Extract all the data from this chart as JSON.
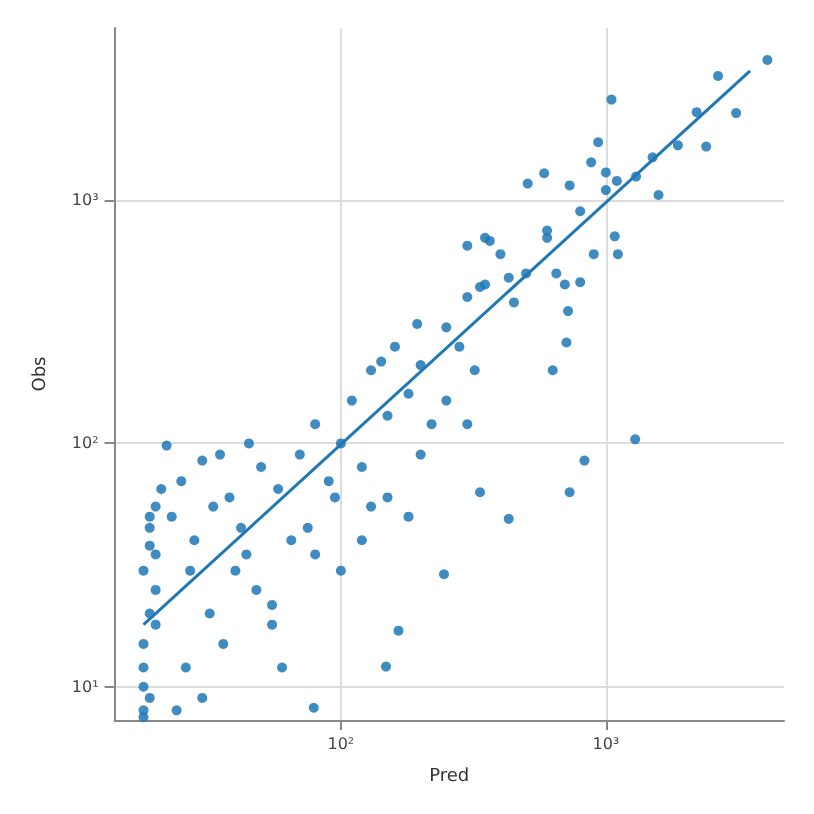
{
  "chart_data": {
    "type": "scatter",
    "xlabel": "Pred",
    "ylabel": "Obs",
    "log": "xy",
    "grid": true,
    "xlim": [
      14,
      4700
    ],
    "ylim": [
      7.3,
      5100
    ],
    "xticks": [
      {
        "value": 100,
        "label": "10²"
      },
      {
        "value": 1000,
        "label": "10³"
      }
    ],
    "yticks": [
      {
        "value": 10,
        "label": "10¹"
      },
      {
        "value": 100,
        "label": "10²"
      },
      {
        "value": 1000,
        "label": "10³"
      }
    ],
    "series": [
      {
        "marker": "circle",
        "color": "#1f77b4",
        "x": [
          18,
          18,
          19,
          18,
          19,
          20,
          18,
          19,
          20,
          19,
          18,
          20,
          19,
          18,
          20,
          22,
          25,
          30,
          35,
          28,
          32,
          26,
          24,
          38,
          40,
          36,
          30,
          45,
          50,
          42,
          48,
          55,
          60,
          65,
          79,
          148,
          55,
          70,
          80,
          90,
          100,
          110,
          120,
          130,
          150,
          160,
          180,
          200,
          220,
          250,
          280,
          300,
          320,
          120,
          150,
          200,
          250,
          180,
          100,
          80,
          130,
          300,
          350,
          400,
          450,
          500,
          600,
          700,
          800,
          900,
          1000,
          1100,
          350,
          300,
          507,
          585,
          730,
          935,
          1050,
          880,
          1000,
          1580,
          2650,
          3100,
          4070,
          1870,
          2390,
          1080,
          1110,
          800,
          720,
          710,
          630,
          830,
          730,
          1290,
          142,
          194,
          365,
          335,
          430,
          245,
          335,
          430,
          165,
          23,
          27,
          33,
          21,
          44,
          58,
          75,
          95,
          2200,
          1500,
          1300,
          600,
          650
        ],
        "values": [
          8,
          12,
          20,
          30,
          45,
          55,
          15,
          9,
          25,
          38,
          10,
          18,
          50,
          7.5,
          35,
          98,
          70,
          85,
          90,
          40,
          20,
          12,
          8,
          60,
          30,
          15,
          9,
          100,
          80,
          45,
          25,
          18,
          12,
          40,
          8.2,
          12.1,
          21.7,
          90,
          120,
          70,
          100,
          150,
          80,
          200,
          130,
          250,
          160,
          210,
          120,
          300,
          250,
          400,
          200,
          40,
          60,
          90,
          150,
          50,
          30,
          35,
          55,
          120,
          450,
          600,
          380,
          500,
          700,
          450,
          900,
          600,
          1100,
          1200,
          700,
          650,
          1170,
          1290,
          1150,
          1730,
          2590,
          1430,
          1300,
          1050,
          3240,
          2280,
          3770,
          1680,
          1660,
          710,
          600,
          460,
          350,
          260,
          200,
          85,
          63,
          104,
          217,
          310,
          680,
          440,
          480,
          29,
          63,
          49,
          17,
          50,
          30,
          55,
          65,
          35,
          65,
          45,
          60,
          2300,
          1500,
          1250,
          750,
          500
        ]
      },
      {
        "type": "line",
        "color": "#1f77b4",
        "x": [
          18,
          3500
        ],
        "values": [
          18,
          3400
        ]
      }
    ]
  }
}
